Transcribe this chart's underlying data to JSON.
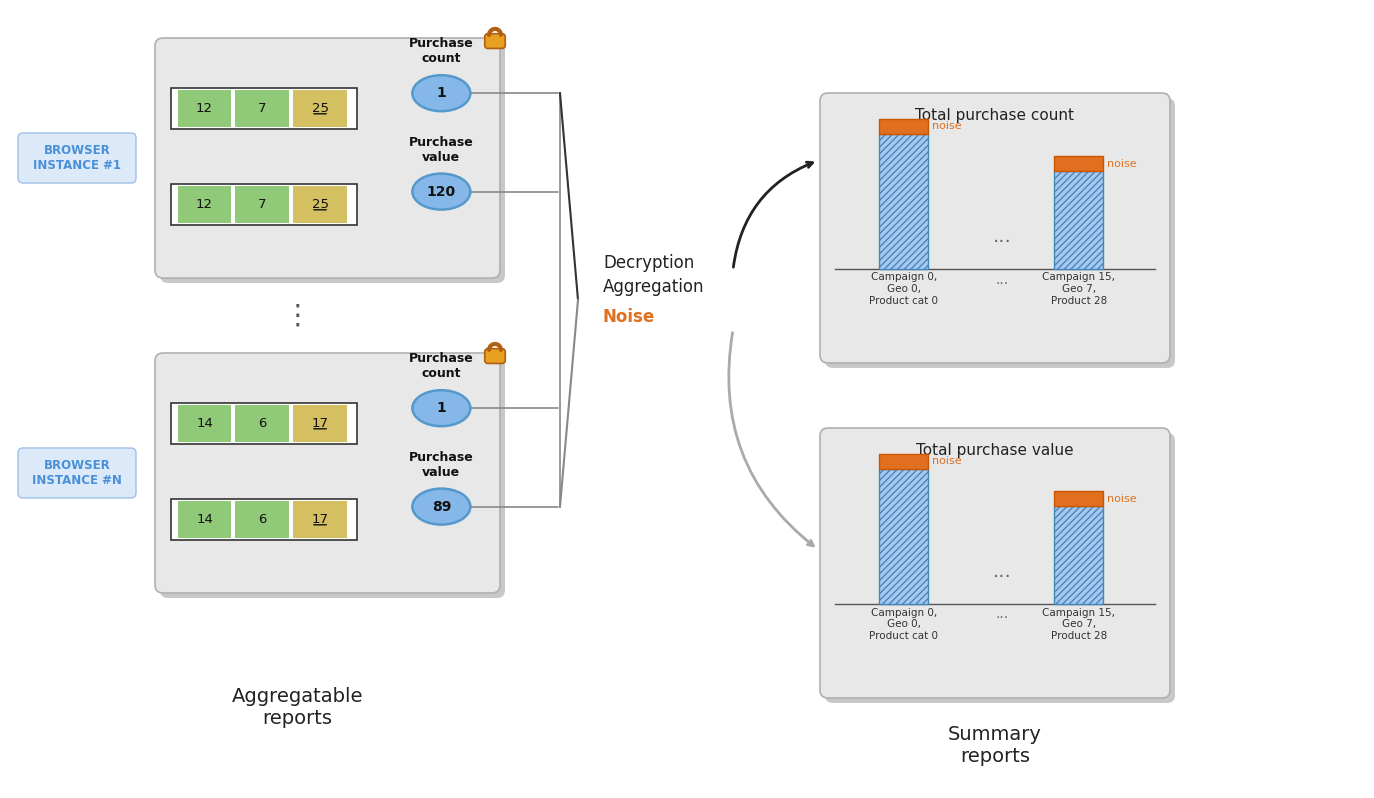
{
  "bg_color": "#ffffff",
  "browser1_label": "BROWSER\nINSTANCE #1",
  "browsern_label": "BROWSER\nINSTANCE #N",
  "browser_box_color": "#dce9f8",
  "browser_text_color": "#4a90d9",
  "report_box_color": "#e8e8e8",
  "report_box_border": "#b0b0b0",
  "green_box_color": "#90c978",
  "yellow_box_color": "#d4c060",
  "blue_circle_color": "#85b8e8",
  "blue_circle_edge": "#5599cc",
  "lock_color": "#e8a020",
  "lock_edge": "#b06010",
  "noise_color": "#e07020",
  "bar_color": "#a8c8f0",
  "bar_edge": "#4488bb",
  "noise_bar_color": "#e07020",
  "summary_box_color": "#e8e8e8",
  "agg_label": "Aggregatable\nreports",
  "summary_label": "Summary\nreports",
  "decryption_line1": "Decryption",
  "decryption_line2": "Aggregation",
  "decryption_line3": "Noise",
  "report1_row1": [
    "12",
    "7",
    "25"
  ],
  "report1_row2": [
    "12",
    "7",
    "25"
  ],
  "reportn_row1": [
    "14",
    "6",
    "17"
  ],
  "reportn_row2": [
    "14",
    "6",
    "17"
  ],
  "count1": "1",
  "value1": "120",
  "countn": "1",
  "valuen": "89",
  "chart1_title": "Total purchase count",
  "chart2_title": "Total purchase value"
}
